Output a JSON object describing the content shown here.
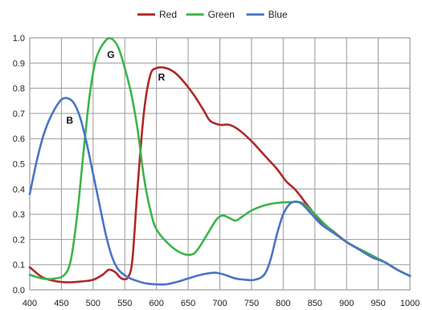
{
  "chart_data": {
    "type": "line",
    "title": "",
    "xlabel": "",
    "ylabel": "",
    "xlim": [
      400,
      1000
    ],
    "ylim": [
      0,
      1.0
    ],
    "x_ticks": [
      "400",
      "450",
      "500",
      "550",
      "600",
      "650",
      "700",
      "750",
      "800",
      "850",
      "900",
      "950",
      "1000"
    ],
    "y_ticks": [
      "0.0",
      "0.1",
      "0.2",
      "0.3",
      "0.4",
      "0.5",
      "0.6",
      "0.7",
      "0.8",
      "0.9",
      "1.0"
    ],
    "grid": true,
    "legend_position": "top-center",
    "series": [
      {
        "name": "Red",
        "color": "#b0282a",
        "points": [
          [
            400,
            0.09
          ],
          [
            420,
            0.05
          ],
          [
            440,
            0.035
          ],
          [
            460,
            0.03
          ],
          [
            480,
            0.033
          ],
          [
            500,
            0.04
          ],
          [
            515,
            0.06
          ],
          [
            525,
            0.08
          ],
          [
            535,
            0.07
          ],
          [
            545,
            0.045
          ],
          [
            555,
            0.05
          ],
          [
            562,
            0.12
          ],
          [
            570,
            0.4
          ],
          [
            580,
            0.7
          ],
          [
            590,
            0.85
          ],
          [
            600,
            0.88
          ],
          [
            615,
            0.88
          ],
          [
            630,
            0.86
          ],
          [
            645,
            0.82
          ],
          [
            660,
            0.77
          ],
          [
            675,
            0.71
          ],
          [
            685,
            0.67
          ],
          [
            700,
            0.655
          ],
          [
            715,
            0.655
          ],
          [
            730,
            0.635
          ],
          [
            750,
            0.59
          ],
          [
            770,
            0.535
          ],
          [
            790,
            0.48
          ],
          [
            805,
            0.43
          ],
          [
            820,
            0.395
          ],
          [
            840,
            0.33
          ],
          [
            860,
            0.27
          ],
          [
            880,
            0.23
          ],
          [
            900,
            0.19
          ],
          [
            920,
            0.16
          ],
          [
            940,
            0.13
          ],
          [
            960,
            0.11
          ],
          [
            980,
            0.08
          ],
          [
            1000,
            0.055
          ]
        ]
      },
      {
        "name": "Green",
        "color": "#3bb54a",
        "points": [
          [
            400,
            0.06
          ],
          [
            420,
            0.045
          ],
          [
            440,
            0.045
          ],
          [
            455,
            0.06
          ],
          [
            465,
            0.12
          ],
          [
            475,
            0.3
          ],
          [
            485,
            0.55
          ],
          [
            495,
            0.78
          ],
          [
            505,
            0.92
          ],
          [
            520,
            0.99
          ],
          [
            530,
            0.995
          ],
          [
            540,
            0.96
          ],
          [
            550,
            0.88
          ],
          [
            560,
            0.78
          ],
          [
            570,
            0.64
          ],
          [
            580,
            0.45
          ],
          [
            590,
            0.32
          ],
          [
            600,
            0.24
          ],
          [
            620,
            0.18
          ],
          [
            640,
            0.145
          ],
          [
            655,
            0.14
          ],
          [
            665,
            0.16
          ],
          [
            680,
            0.22
          ],
          [
            695,
            0.28
          ],
          [
            705,
            0.295
          ],
          [
            715,
            0.285
          ],
          [
            725,
            0.275
          ],
          [
            735,
            0.29
          ],
          [
            750,
            0.315
          ],
          [
            770,
            0.335
          ],
          [
            790,
            0.345
          ],
          [
            810,
            0.348
          ],
          [
            830,
            0.345
          ],
          [
            850,
            0.3
          ],
          [
            870,
            0.25
          ],
          [
            900,
            0.19
          ],
          [
            930,
            0.15
          ],
          [
            960,
            0.11
          ],
          [
            980,
            0.08
          ],
          [
            1000,
            0.055
          ]
        ]
      },
      {
        "name": "Blue",
        "color": "#4a74c4",
        "points": [
          [
            400,
            0.38
          ],
          [
            410,
            0.5
          ],
          [
            420,
            0.6
          ],
          [
            430,
            0.67
          ],
          [
            440,
            0.72
          ],
          [
            450,
            0.755
          ],
          [
            460,
            0.76
          ],
          [
            470,
            0.74
          ],
          [
            480,
            0.68
          ],
          [
            490,
            0.58
          ],
          [
            500,
            0.46
          ],
          [
            510,
            0.34
          ],
          [
            520,
            0.22
          ],
          [
            530,
            0.13
          ],
          [
            540,
            0.08
          ],
          [
            555,
            0.05
          ],
          [
            570,
            0.035
          ],
          [
            585,
            0.025
          ],
          [
            600,
            0.022
          ],
          [
            615,
            0.022
          ],
          [
            630,
            0.03
          ],
          [
            650,
            0.045
          ],
          [
            670,
            0.06
          ],
          [
            690,
            0.068
          ],
          [
            700,
            0.065
          ],
          [
            710,
            0.058
          ],
          [
            725,
            0.045
          ],
          [
            740,
            0.04
          ],
          [
            755,
            0.04
          ],
          [
            770,
            0.06
          ],
          [
            780,
            0.12
          ],
          [
            790,
            0.22
          ],
          [
            800,
            0.3
          ],
          [
            810,
            0.34
          ],
          [
            820,
            0.35
          ],
          [
            830,
            0.34
          ],
          [
            845,
            0.3
          ],
          [
            860,
            0.26
          ],
          [
            880,
            0.225
          ],
          [
            900,
            0.19
          ],
          [
            920,
            0.16
          ],
          [
            940,
            0.13
          ],
          [
            960,
            0.11
          ],
          [
            980,
            0.08
          ],
          [
            1000,
            0.055
          ]
        ]
      }
    ],
    "annotations": [
      {
        "text": "R",
        "x": 608,
        "y": 0.83
      },
      {
        "text": "G",
        "x": 528,
        "y": 0.92
      },
      {
        "text": "B",
        "x": 463,
        "y": 0.66
      }
    ]
  }
}
